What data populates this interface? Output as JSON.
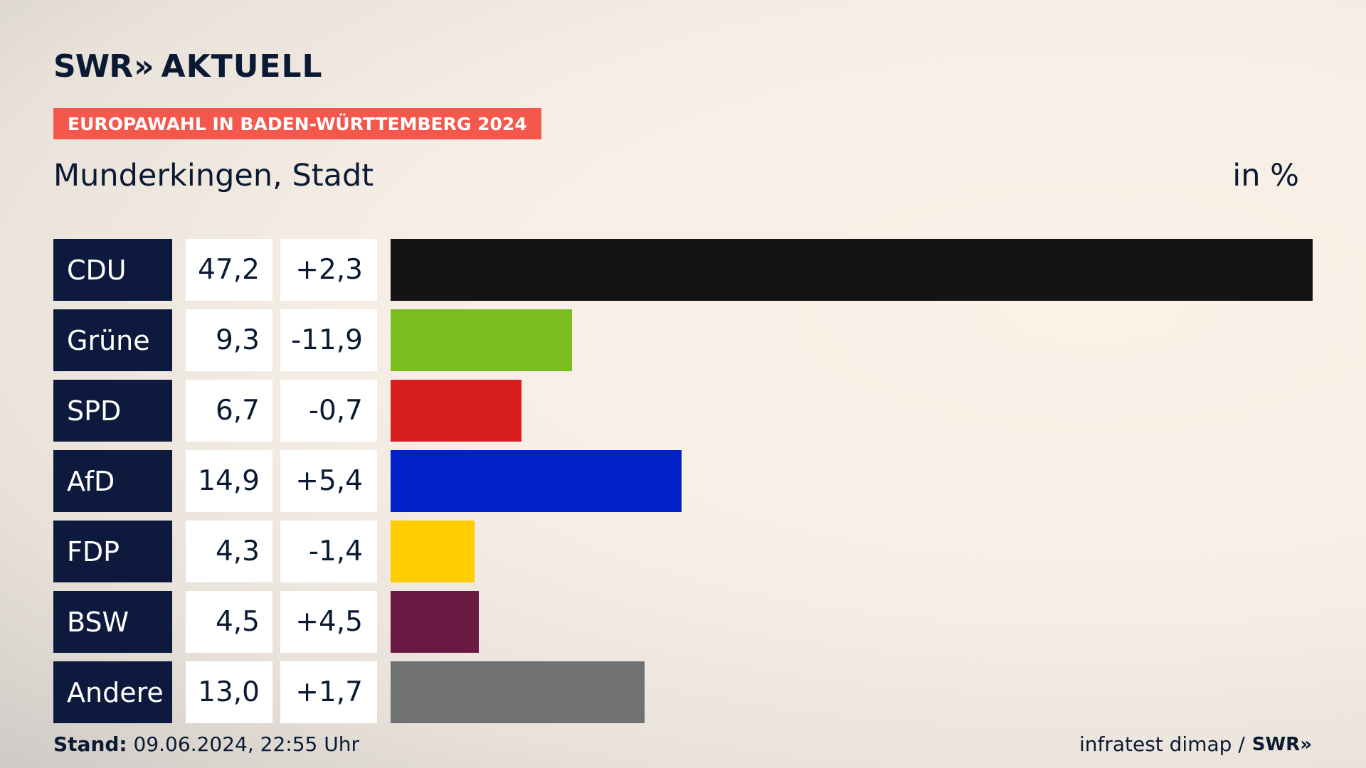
{
  "brand": {
    "logo_text": "SWR",
    "logo_chevrons": "»",
    "section": "AKTUELL"
  },
  "badge": "EUROPAWAHL IN BADEN-WÜRTTEMBERG 2024",
  "subtitle": "Munderkingen, Stadt",
  "unit_label": "in %",
  "chart_data": {
    "type": "bar",
    "title": "EUROPAWAHL IN BADEN-WÜRTTEMBERG 2024",
    "subtitle": "Munderkingen, Stadt",
    "unit": "in %",
    "orientation": "horizontal",
    "categories": [
      "CDU",
      "Grüne",
      "SPD",
      "AfD",
      "FDP",
      "BSW",
      "Andere"
    ],
    "values": [
      47.2,
      9.3,
      6.7,
      14.9,
      4.3,
      4.5,
      13.0
    ],
    "value_labels": [
      "47,2",
      "9,3",
      "6,7",
      "14,9",
      "4,3",
      "4,5",
      "13,0"
    ],
    "diff_labels": [
      "+2,3",
      "-11,9",
      "-0,7",
      "+5,4",
      "-1,4",
      "+4,5",
      "+1,7"
    ],
    "diffs": [
      2.3,
      -11.9,
      -0.7,
      5.4,
      -1.4,
      4.5,
      1.7
    ],
    "colors": [
      "#141414",
      "#7bbd1e",
      "#d71f1e",
      "#0120c8",
      "#ffcc00",
      "#6a1a42",
      "#707172"
    ],
    "xlim": [
      0,
      47.2
    ]
  },
  "footer": {
    "stand_label": "Stand:",
    "stand_value": "09.06.2024, 22:55 Uhr",
    "source": "infratest dimap /",
    "source_brand": "SWR»"
  }
}
